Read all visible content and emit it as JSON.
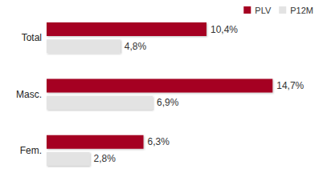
{
  "chart_data": {
    "type": "bar",
    "orientation": "horizontal",
    "categories": [
      "Total",
      "Masc.",
      "Fem."
    ],
    "series": [
      {
        "name": "PLV",
        "color": "#a50021",
        "values": [
          10.4,
          14.7,
          6.3
        ],
        "value_labels": [
          "10,4%",
          "14,7%",
          "6,3%"
        ]
      },
      {
        "name": "P12M",
        "color": "#e3e3e3",
        "values": [
          4.8,
          6.9,
          2.8
        ],
        "value_labels": [
          "4,8%",
          "6,9%",
          "2,8%"
        ]
      }
    ],
    "legend": "top-right",
    "data_labels": true,
    "tick_labels": "y",
    "grid": false
  }
}
